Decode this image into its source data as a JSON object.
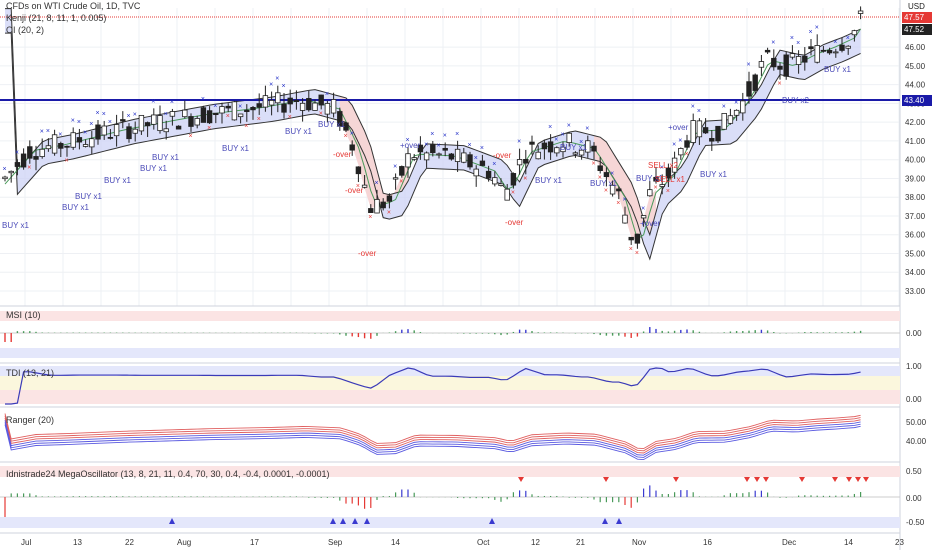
{
  "header": {
    "symbol_line": "CFDs on WTI Crude Oil, 1D, TVC",
    "indicator_1": "Kenji (21, 8, 11, 1, 0.005)",
    "indicator_2": "OI (20, 2)",
    "currency": "USD"
  },
  "price_tags": [
    {
      "label": "47.57",
      "color": "#e53935"
    },
    {
      "label": "47.52",
      "color": "#222222"
    },
    {
      "label": "43.40",
      "color": "#1a1aa8"
    }
  ],
  "main_axis_labels": [
    "46.00",
    "45.00",
    "44.00",
    "43.00",
    "42.00",
    "41.00",
    "40.00",
    "39.00",
    "38.00",
    "37.00",
    "36.00",
    "35.00",
    "34.00",
    "33.00"
  ],
  "main_annotations": [
    "BUY x1",
    "BUY x1",
    "BUY x1",
    "BUY x1",
    "BUY x1",
    "BUY x1",
    "BUY x1",
    "BUY x1",
    "BUY x1",
    "BUY x1",
    "BUY x1",
    "BUY x2",
    "BUY x1",
    "BUY x1",
    "BUY x1",
    "BUY x1",
    "SELL x2",
    "SELL x1",
    "-over",
    "-over",
    "+over",
    "-over",
    "-over",
    "+over",
    "-over",
    "+over"
  ],
  "panes": [
    {
      "title": "MSI (10)",
      "axis": [
        "0.00"
      ]
    },
    {
      "title": "TDI (13, 21)",
      "axis": [
        "1.00",
        "0.00"
      ]
    },
    {
      "title": "Ranger (20)",
      "axis": [
        "50.00",
        "40.00"
      ]
    },
    {
      "title": "Idnistrade24 MegaOscillator (13, 8, 21, 11, 0.4, 70, 30, 0.4, -0.4, 0.0001, -0.0001)",
      "axis": [
        "0.50",
        "0.00",
        "-0.50"
      ]
    }
  ],
  "x_axis": [
    "Jul",
    "13",
    "22",
    "Aug",
    "17",
    "Sep",
    "14",
    "Oct",
    "12",
    "21",
    "Nov",
    "16",
    "Dec",
    "14",
    "23"
  ],
  "colors": {
    "up": "#ffffff",
    "down": "#222222",
    "ma_fill": "#cdd3f5",
    "sell_fill": "#f6d6d6",
    "hline": "#1a1aa8",
    "cross": "#2430c8",
    "red": "#e53935"
  }
}
